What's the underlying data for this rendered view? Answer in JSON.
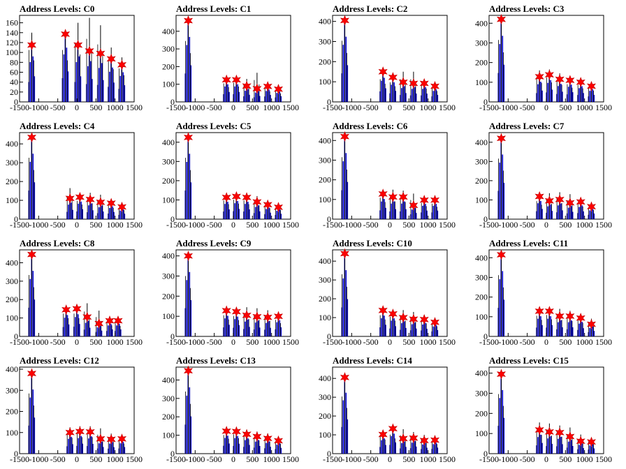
{
  "chart_data": [
    {
      "type": "bar",
      "title": "Address Levels: C0",
      "xlim": [
        -1500,
        1500
      ],
      "ylim": [
        0,
        175
      ],
      "yticks": [
        0,
        20,
        40,
        60,
        80,
        100,
        120,
        140,
        160
      ],
      "xticks": [
        -1500,
        -1000,
        -500,
        0,
        500,
        1000,
        1500
      ],
      "xtick_labels": [
        "-1500",
        "-1000",
        "-500",
        "0",
        "500",
        "1000",
        "1500"
      ],
      "peaks": [
        {
          "x": -1180,
          "y": 115
        },
        {
          "x": -300,
          "y": 137
        },
        {
          "x": 30,
          "y": 115
        },
        {
          "x": 330,
          "y": 103
        },
        {
          "x": 620,
          "y": 98
        },
        {
          "x": 900,
          "y": 87
        },
        {
          "x": 1180,
          "y": 75
        }
      ],
      "spikes": [
        140,
        140,
        160,
        170,
        155,
        110,
        90
      ]
    },
    {
      "type": "bar",
      "title": "Address Levels: C1",
      "xlim": [
        -1500,
        1500
      ],
      "ylim": [
        0,
        490
      ],
      "yticks": [
        0,
        100,
        200,
        300,
        400
      ],
      "xticks": [
        -1500,
        -1000,
        -500,
        0,
        500,
        1000,
        1500
      ],
      "xtick_labels": [
        "-1500",
        "-1000",
        "-500",
        "0",
        "500",
        "1000",
        "1500"
      ],
      "peaks": [
        {
          "x": -1180,
          "y": 460
        },
        {
          "x": -180,
          "y": 125
        },
        {
          "x": 80,
          "y": 125
        },
        {
          "x": 350,
          "y": 90
        },
        {
          "x": 620,
          "y": 75
        },
        {
          "x": 900,
          "y": 88
        },
        {
          "x": 1180,
          "y": 72
        }
      ],
      "spikes": [
        460,
        140,
        145,
        130,
        165,
        100,
        80
      ]
    },
    {
      "type": "bar",
      "title": "Address Levels: C2",
      "xlim": [
        -1500,
        1500
      ],
      "ylim": [
        0,
        430
      ],
      "yticks": [
        0,
        100,
        200,
        300,
        400
      ],
      "xticks": [
        -1500,
        -1000,
        -500,
        0,
        500,
        1000,
        1500
      ],
      "xtick_labels": [
        "-1500",
        "-1000",
        "-500",
        "0",
        "500",
        "1000",
        "1500"
      ],
      "peaks": [
        {
          "x": -1180,
          "y": 405
        },
        {
          "x": -180,
          "y": 150
        },
        {
          "x": 80,
          "y": 122
        },
        {
          "x": 350,
          "y": 98
        },
        {
          "x": 620,
          "y": 92
        },
        {
          "x": 900,
          "y": 92
        },
        {
          "x": 1180,
          "y": 78
        }
      ],
      "spikes": [
        405,
        150,
        130,
        150,
        150,
        110,
        90
      ]
    },
    {
      "type": "bar",
      "title": "Address Levels: C3",
      "xlim": [
        -1500,
        1500
      ],
      "ylim": [
        0,
        440
      ],
      "yticks": [
        0,
        100,
        200,
        300,
        400
      ],
      "xticks": [
        -1500,
        -1000,
        -500,
        0,
        500,
        1000,
        1500
      ],
      "xtick_labels": [
        "-1500",
        "-1000",
        "-500",
        "0",
        "500",
        "1000",
        "1500"
      ],
      "peaks": [
        {
          "x": -1180,
          "y": 420
        },
        {
          "x": -180,
          "y": 128
        },
        {
          "x": 80,
          "y": 138
        },
        {
          "x": 350,
          "y": 115
        },
        {
          "x": 620,
          "y": 110
        },
        {
          "x": 900,
          "y": 100
        },
        {
          "x": 1180,
          "y": 80
        }
      ],
      "spikes": [
        420,
        160,
        165,
        145,
        120,
        115,
        95
      ]
    },
    {
      "type": "bar",
      "title": "Address Levels: C4",
      "xlim": [
        -1500,
        1500
      ],
      "ylim": [
        0,
        460
      ],
      "yticks": [
        0,
        100,
        200,
        300,
        400
      ],
      "xticks": [
        -1500,
        -1000,
        -500,
        0,
        500,
        1000,
        1500
      ],
      "xtick_labels": [
        "-1500",
        "-1000",
        "-500",
        "0",
        "500",
        "1000",
        "1500"
      ],
      "peaks": [
        {
          "x": -1180,
          "y": 435
        },
        {
          "x": -180,
          "y": 110
        },
        {
          "x": 80,
          "y": 117
        },
        {
          "x": 350,
          "y": 105
        },
        {
          "x": 620,
          "y": 90
        },
        {
          "x": 900,
          "y": 85
        },
        {
          "x": 1180,
          "y": 65
        }
      ],
      "spikes": [
        435,
        165,
        130,
        140,
        130,
        100,
        80
      ]
    },
    {
      "type": "bar",
      "title": "Address Levels: C5",
      "xlim": [
        -1500,
        1500
      ],
      "ylim": [
        0,
        450
      ],
      "yticks": [
        0,
        100,
        200,
        300,
        400
      ],
      "xticks": [
        -1500,
        -1000,
        -500,
        0,
        500,
        1000,
        1500
      ],
      "xtick_labels": [
        "-1500",
        "-1000",
        "-500",
        "0",
        "500",
        "1000",
        "1500"
      ],
      "peaks": [
        {
          "x": -1180,
          "y": 425
        },
        {
          "x": -180,
          "y": 113
        },
        {
          "x": 80,
          "y": 118
        },
        {
          "x": 350,
          "y": 113
        },
        {
          "x": 620,
          "y": 90
        },
        {
          "x": 900,
          "y": 75
        },
        {
          "x": 1180,
          "y": 62
        }
      ],
      "spikes": [
        425,
        130,
        135,
        130,
        120,
        95,
        80
      ]
    },
    {
      "type": "bar",
      "title": "Address Levels: C6",
      "xlim": [
        -1500,
        1500
      ],
      "ylim": [
        0,
        440
      ],
      "yticks": [
        0,
        100,
        200,
        300,
        400
      ],
      "xticks": [
        -1500,
        -1000,
        -500,
        0,
        500,
        1000,
        1500
      ],
      "xtick_labels": [
        "-1500",
        "-1000",
        "-500",
        "0",
        "500",
        "1000",
        "1500"
      ],
      "peaks": [
        {
          "x": -1180,
          "y": 420
        },
        {
          "x": -180,
          "y": 128
        },
        {
          "x": 80,
          "y": 113
        },
        {
          "x": 350,
          "y": 113
        },
        {
          "x": 620,
          "y": 70
        },
        {
          "x": 900,
          "y": 97
        },
        {
          "x": 1180,
          "y": 97
        }
      ],
      "spikes": [
        420,
        145,
        150,
        145,
        130,
        110,
        105
      ]
    },
    {
      "type": "bar",
      "title": "Address Levels: C7",
      "xlim": [
        -1500,
        1500
      ],
      "ylim": [
        0,
        450
      ],
      "yticks": [
        0,
        100,
        200,
        300,
        400
      ],
      "xticks": [
        -1500,
        -1000,
        -500,
        0,
        500,
        1000,
        1500
      ],
      "xtick_labels": [
        "-1500",
        "-1000",
        "-500",
        "0",
        "500",
        "1000",
        "1500"
      ],
      "peaks": [
        {
          "x": -1180,
          "y": 420
        },
        {
          "x": -180,
          "y": 118
        },
        {
          "x": 80,
          "y": 95
        },
        {
          "x": 350,
          "y": 102
        },
        {
          "x": 620,
          "y": 85
        },
        {
          "x": 900,
          "y": 90
        },
        {
          "x": 1180,
          "y": 65
        }
      ],
      "spikes": [
        420,
        125,
        135,
        140,
        130,
        110,
        80
      ]
    },
    {
      "type": "bar",
      "title": "Address Levels: C8",
      "xlim": [
        -1500,
        1500
      ],
      "ylim": [
        0,
        470
      ],
      "yticks": [
        0,
        100,
        200,
        300,
        400
      ],
      "xticks": [
        -1500,
        -1000,
        -500,
        0,
        500,
        1000,
        1500
      ],
      "xtick_labels": [
        "-1500",
        "-1000",
        "-500",
        "0",
        "500",
        "1000",
        "1500"
      ],
      "peaks": [
        {
          "x": -1180,
          "y": 445
        },
        {
          "x": -280,
          "y": 145
        },
        {
          "x": 0,
          "y": 150
        },
        {
          "x": 270,
          "y": 105
        },
        {
          "x": 580,
          "y": 70
        },
        {
          "x": 860,
          "y": 85
        },
        {
          "x": 1080,
          "y": 85
        }
      ],
      "spikes": [
        445,
        165,
        165,
        180,
        140,
        100,
        95
      ]
    },
    {
      "type": "bar",
      "title": "Address Levels: C9",
      "xlim": [
        -1500,
        1500
      ],
      "ylim": [
        0,
        430
      ],
      "yticks": [
        0,
        100,
        200,
        300,
        400
      ],
      "xticks": [
        -1500,
        -1000,
        -500,
        0,
        500,
        1000,
        1500
      ],
      "xtick_labels": [
        "-1500",
        "-1000",
        "-500",
        "0",
        "500",
        "1000",
        "1500"
      ],
      "peaks": [
        {
          "x": -1180,
          "y": 400
        },
        {
          "x": -180,
          "y": 128
        },
        {
          "x": 80,
          "y": 123
        },
        {
          "x": 350,
          "y": 105
        },
        {
          "x": 620,
          "y": 98
        },
        {
          "x": 900,
          "y": 95
        },
        {
          "x": 1180,
          "y": 100
        }
      ],
      "spikes": [
        400,
        140,
        135,
        145,
        140,
        130,
        110
      ]
    },
    {
      "type": "bar",
      "title": "Address Levels: C10",
      "xlim": [
        -1500,
        1500
      ],
      "ylim": [
        0,
        460
      ],
      "yticks": [
        0,
        100,
        200,
        300,
        400
      ],
      "xticks": [
        -1500,
        -1000,
        -500,
        0,
        500,
        1000,
        1500
      ],
      "xtick_labels": [
        "-1500",
        "-1000",
        "-500",
        "0",
        "500",
        "1000",
        "1500"
      ],
      "peaks": [
        {
          "x": -1180,
          "y": 440
        },
        {
          "x": -180,
          "y": 138
        },
        {
          "x": 80,
          "y": 120
        },
        {
          "x": 350,
          "y": 100
        },
        {
          "x": 620,
          "y": 92
        },
        {
          "x": 900,
          "y": 90
        },
        {
          "x": 1180,
          "y": 75
        }
      ],
      "spikes": [
        440,
        150,
        140,
        140,
        130,
        115,
        90
      ]
    },
    {
      "type": "bar",
      "title": "Address Levels: C11",
      "xlim": [
        -1500,
        1500
      ],
      "ylim": [
        0,
        440
      ],
      "yticks": [
        0,
        100,
        200,
        300,
        400
      ],
      "xticks": [
        -1500,
        -1000,
        -500,
        0,
        500,
        1000,
        1500
      ],
      "xtick_labels": [
        "-1500",
        "-1000",
        "-500",
        "0",
        "500",
        "1000",
        "1500"
      ],
      "peaks": [
        {
          "x": -1180,
          "y": 415
        },
        {
          "x": -180,
          "y": 128
        },
        {
          "x": 80,
          "y": 128
        },
        {
          "x": 350,
          "y": 103
        },
        {
          "x": 620,
          "y": 103
        },
        {
          "x": 900,
          "y": 93
        },
        {
          "x": 1180,
          "y": 62
        }
      ],
      "spikes": [
        415,
        140,
        145,
        140,
        130,
        115,
        90
      ]
    },
    {
      "type": "bar",
      "title": "Address Levels: C12",
      "xlim": [
        -1500,
        1500
      ],
      "ylim": [
        0,
        410
      ],
      "yticks": [
        0,
        100,
        200,
        300,
        400
      ],
      "xticks": [
        -1500,
        -1000,
        -500,
        0,
        500,
        1000,
        1500
      ],
      "xtick_labels": [
        "-1500",
        "-1000",
        "-500",
        "0",
        "500",
        "1000",
        "1500"
      ],
      "peaks": [
        {
          "x": -1180,
          "y": 380
        },
        {
          "x": -180,
          "y": 100
        },
        {
          "x": 80,
          "y": 105
        },
        {
          "x": 350,
          "y": 103
        },
        {
          "x": 620,
          "y": 70
        },
        {
          "x": 900,
          "y": 68
        },
        {
          "x": 1180,
          "y": 70
        }
      ],
      "spikes": [
        380,
        125,
        130,
        130,
        120,
        95,
        80
      ]
    },
    {
      "type": "bar",
      "title": "Address Levels: C13",
      "xlim": [
        -1500,
        1500
      ],
      "ylim": [
        0,
        470
      ],
      "yticks": [
        0,
        100,
        200,
        300,
        400
      ],
      "xticks": [
        -1500,
        -1000,
        -500,
        0,
        500,
        1000,
        1500
      ],
      "xtick_labels": [
        "-1500",
        "-1000",
        "-500",
        "0",
        "500",
        "1000",
        "1500"
      ],
      "peaks": [
        {
          "x": -1180,
          "y": 450
        },
        {
          "x": -180,
          "y": 122
        },
        {
          "x": 80,
          "y": 120
        },
        {
          "x": 350,
          "y": 105
        },
        {
          "x": 620,
          "y": 93
        },
        {
          "x": 900,
          "y": 83
        },
        {
          "x": 1180,
          "y": 70
        }
      ],
      "spikes": [
        450,
        135,
        140,
        130,
        120,
        110,
        90
      ]
    },
    {
      "type": "bar",
      "title": "Address Levels: C14",
      "xlim": [
        -1500,
        1500
      ],
      "ylim": [
        0,
        460
      ],
      "yticks": [
        0,
        100,
        200,
        300,
        400
      ],
      "xticks": [
        -1500,
        -1000,
        -500,
        0,
        500,
        1000,
        1500
      ],
      "xtick_labels": [
        "-1500",
        "-1000",
        "-500",
        "0",
        "500",
        "1000",
        "1500"
      ],
      "peaks": [
        {
          "x": -1180,
          "y": 405
        },
        {
          "x": -180,
          "y": 102
        },
        {
          "x": 80,
          "y": 133
        },
        {
          "x": 350,
          "y": 80
        },
        {
          "x": 620,
          "y": 83
        },
        {
          "x": 900,
          "y": 70
        },
        {
          "x": 1180,
          "y": 72
        }
      ],
      "spikes": [
        405,
        125,
        135,
        130,
        115,
        100,
        85
      ]
    },
    {
      "type": "bar",
      "title": "Address Levels: C15",
      "xlim": [
        -1500,
        1500
      ],
      "ylim": [
        0,
        430
      ],
      "yticks": [
        0,
        100,
        200,
        300,
        400
      ],
      "xticks": [
        -1500,
        -1000,
        -500,
        0,
        500,
        1000,
        1500
      ],
      "xtick_labels": [
        "-1500",
        "-1000",
        "-500",
        "0",
        "500",
        "1000",
        "1500"
      ],
      "peaks": [
        {
          "x": -1180,
          "y": 395
        },
        {
          "x": -180,
          "y": 118
        },
        {
          "x": 80,
          "y": 108
        },
        {
          "x": 350,
          "y": 105
        },
        {
          "x": 620,
          "y": 85
        },
        {
          "x": 900,
          "y": 62
        },
        {
          "x": 1180,
          "y": 58
        }
      ],
      "spikes": [
        395,
        155,
        150,
        140,
        130,
        95,
        80
      ]
    }
  ],
  "colors": {
    "histogram": "#0000cc",
    "spike": "#000000",
    "marker": "#ff0000",
    "marker_edge": "#cc0000",
    "axis": "#000000"
  }
}
